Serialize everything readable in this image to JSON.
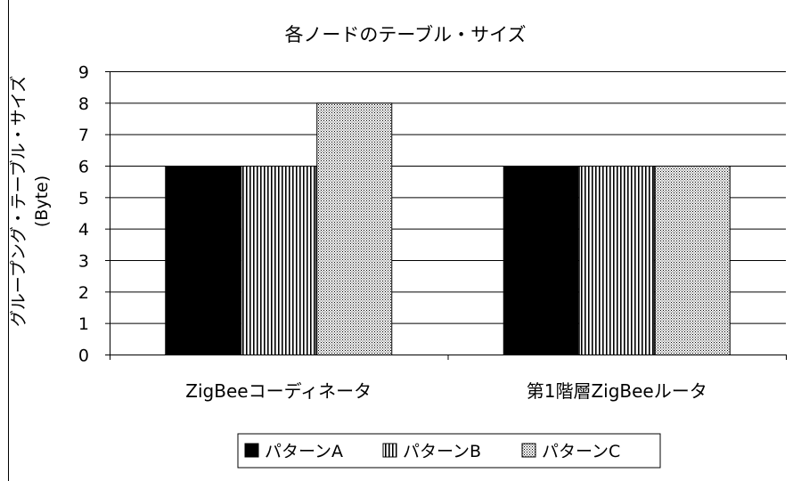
{
  "chart_data": {
    "type": "bar",
    "title": "各ノードのテーブル・サイズ",
    "ylabel_line1": "グループング・テーブル・サイズ",
    "ylabel_line2": "(Byte)",
    "xlabel": "",
    "categories": [
      "ZigBeeコーディネータ",
      "第1階層ZigBeeルータ"
    ],
    "series": [
      {
        "name": "パターンA",
        "values": [
          6,
          6
        ],
        "pattern": "solid-black"
      },
      {
        "name": "パターンB",
        "values": [
          6,
          6
        ],
        "pattern": "vertical-stripes"
      },
      {
        "name": "パターンC",
        "values": [
          8,
          6
        ],
        "pattern": "dots"
      }
    ],
    "ylim": [
      0,
      9
    ],
    "yticks": [
      0,
      1,
      2,
      3,
      4,
      5,
      6,
      7,
      8,
      9
    ],
    "grid": true,
    "legend_position": "bottom"
  }
}
